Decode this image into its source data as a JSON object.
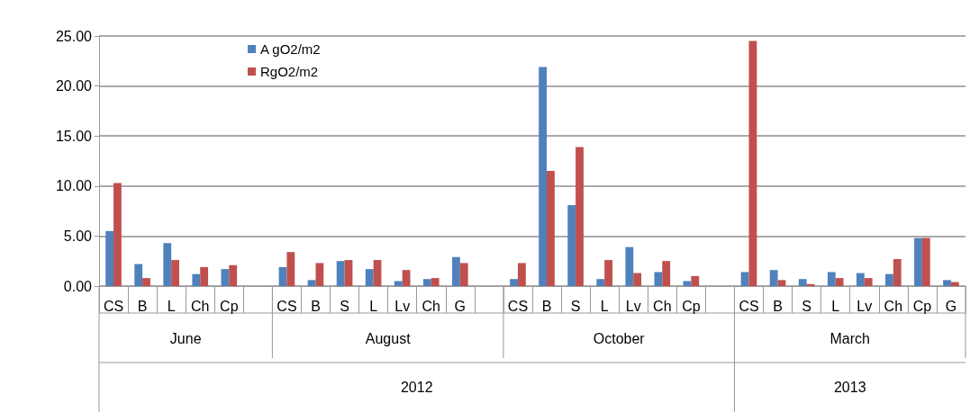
{
  "chart_data": {
    "type": "bar",
    "categories": [
      "CS",
      "B",
      "L",
      "Ch",
      "Cp",
      null,
      "CS",
      "B",
      "S",
      "L",
      "Lv",
      "Ch",
      "G",
      null,
      "CS",
      "B",
      "S",
      "L",
      "Lv",
      "Ch",
      "Cp",
      null,
      "CS",
      "B",
      "S",
      "L",
      "Lv",
      "Ch",
      "Cp",
      "G"
    ],
    "series": [
      {
        "name": "A gO2/m2",
        "color": "#4f81bd",
        "values": [
          5.5,
          2.2,
          4.3,
          1.2,
          1.7,
          null,
          1.9,
          0.6,
          2.5,
          1.7,
          0.5,
          0.7,
          2.9,
          null,
          0.7,
          21.9,
          8.1,
          0.7,
          3.9,
          1.4,
          0.5,
          null,
          1.4,
          1.6,
          0.7,
          1.4,
          1.3,
          1.2,
          4.8,
          0.6
        ]
      },
      {
        "name": "RgO2/m2",
        "color": "#c0504d",
        "values": [
          10.3,
          0.8,
          2.6,
          1.9,
          2.1,
          null,
          3.4,
          2.3,
          2.6,
          2.6,
          1.6,
          0.8,
          2.3,
          null,
          2.3,
          11.5,
          13.9,
          2.6,
          1.3,
          2.5,
          1.0,
          null,
          24.5,
          0.6,
          0.2,
          0.8,
          0.8,
          2.7,
          4.8,
          0.4
        ]
      }
    ],
    "ylim": [
      0,
      25
    ],
    "yticks": [
      {
        "value": 0,
        "label": "0.00"
      },
      {
        "value": 5,
        "label": "5.00"
      },
      {
        "value": 10,
        "label": "10.00"
      },
      {
        "value": 15,
        "label": "15.00"
      },
      {
        "value": 20,
        "label": "20.00"
      },
      {
        "value": 25,
        "label": "25.00"
      }
    ],
    "grid": "y",
    "legend": "top",
    "annotations": [
      "June",
      "August",
      "October",
      "March",
      "2012",
      "2013"
    ]
  }
}
